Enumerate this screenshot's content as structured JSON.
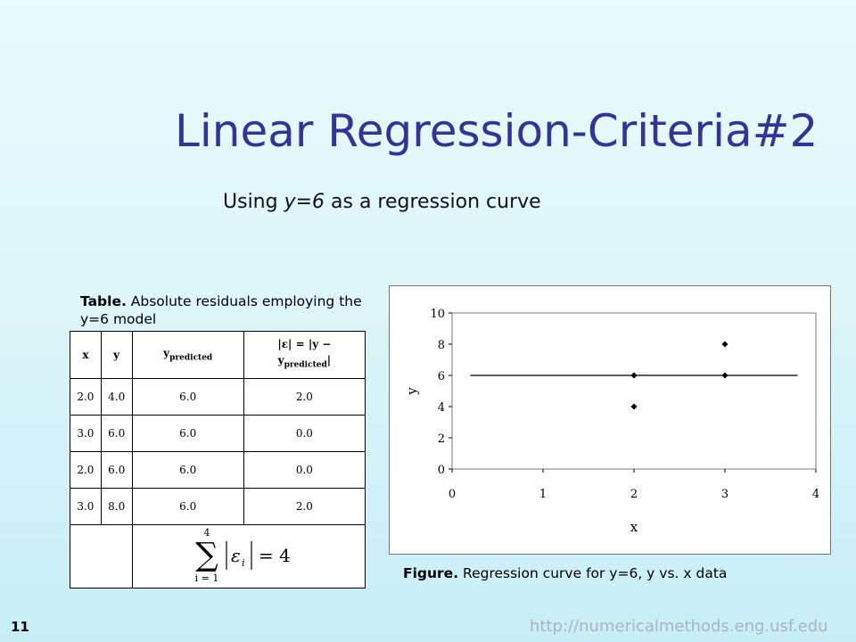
{
  "slide": {
    "title": "Linear Regression-Criteria#2",
    "subtitle_prefix": "Using ",
    "subtitle_model": "y=6",
    "subtitle_suffix": " as a regression curve",
    "page_number": "11",
    "url": "http://numericalmethods.eng.usf.edu"
  },
  "table": {
    "caption_bold": "Table.",
    "caption_text": " Absolute residuals employing the y=6 model",
    "headers": {
      "x": "x",
      "y": "y",
      "ypred_main": "y",
      "ypred_sub": "predicted",
      "eps_main": "|ε| = |y −",
      "eps_main2": "y",
      "eps_sub": "predicted",
      "eps_tail": "|"
    },
    "rows": [
      {
        "x": "2.0",
        "y": "4.0",
        "ypred": "6.0",
        "eps": "2.0"
      },
      {
        "x": "3.0",
        "y": "6.0",
        "ypred": "6.0",
        "eps": "0.0"
      },
      {
        "x": "2.0",
        "y": "6.0",
        "ypred": "6.0",
        "eps": "0.0"
      },
      {
        "x": "3.0",
        "y": "8.0",
        "ypred": "6.0",
        "eps": "2.0"
      }
    ],
    "sum": {
      "upper": "4",
      "lower": "i = 1",
      "term": "ε",
      "term_sub": "i",
      "equals": "= 4"
    }
  },
  "figure": {
    "caption_bold": "Figure.",
    "caption_text": " Regression curve for y=6, y vs. x data"
  },
  "chart_data": {
    "type": "scatter",
    "xlabel": "x",
    "ylabel": "y",
    "xlim": [
      0,
      4
    ],
    "ylim": [
      0,
      10
    ],
    "xticks": [
      "0",
      "1",
      "2",
      "3",
      "4"
    ],
    "yticks": [
      "0",
      "2",
      "4",
      "6",
      "8",
      "10"
    ],
    "grid": false,
    "points": [
      {
        "x": 2,
        "y": 4
      },
      {
        "x": 3,
        "y": 6
      },
      {
        "x": 2,
        "y": 6
      },
      {
        "x": 3,
        "y": 8
      }
    ],
    "line": {
      "y": 6,
      "x_from": 0.2,
      "x_to": 3.8
    }
  }
}
